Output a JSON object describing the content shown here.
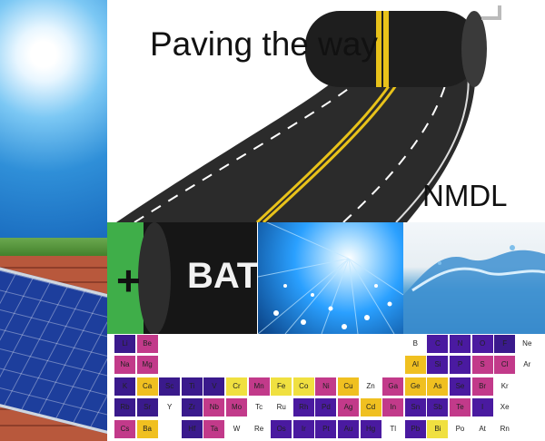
{
  "title": "Paving the way",
  "org": "NMDL",
  "battery_sign": "+",
  "battery_text": "BAT",
  "periodic_table": {
    "rows": [
      {
        "row": 1,
        "cells": [
          {
            "col": 0,
            "sym": "Li",
            "color": "#3a1a8c"
          },
          {
            "col": 1,
            "sym": "Be",
            "color": "#c23a8a"
          },
          {
            "col": 13,
            "sym": "B",
            "color": "#ffffff"
          },
          {
            "col": 14,
            "sym": "C",
            "color": "#4a1aa0"
          },
          {
            "col": 15,
            "sym": "N",
            "color": "#4a1aa0"
          },
          {
            "col": 16,
            "sym": "O",
            "color": "#4a1aa0"
          },
          {
            "col": 17,
            "sym": "F",
            "color": "#3a1a8c"
          },
          {
            "col": 18,
            "sym": "Ne",
            "color": "#ffffff"
          }
        ]
      },
      {
        "row": 2,
        "cells": [
          {
            "col": 0,
            "sym": "Na",
            "color": "#c23a8a"
          },
          {
            "col": 1,
            "sym": "Mg",
            "color": "#c23a8a"
          },
          {
            "col": 13,
            "sym": "Al",
            "color": "#f0c020"
          },
          {
            "col": 14,
            "sym": "Si",
            "color": "#4a1aa0"
          },
          {
            "col": 15,
            "sym": "P",
            "color": "#4a1aa0"
          },
          {
            "col": 16,
            "sym": "S",
            "color": "#c23a8a"
          },
          {
            "col": 17,
            "sym": "Cl",
            "color": "#c23a8a"
          },
          {
            "col": 18,
            "sym": "Ar",
            "color": "#ffffff"
          }
        ]
      },
      {
        "row": 3,
        "cells": [
          {
            "col": 0,
            "sym": "K",
            "color": "#3a1a8c"
          },
          {
            "col": 1,
            "sym": "Ca",
            "color": "#f0c020"
          },
          {
            "col": 2,
            "sym": "Sc",
            "color": "#3a1a8c"
          },
          {
            "col": 3,
            "sym": "Ti",
            "color": "#3a1a8c"
          },
          {
            "col": 4,
            "sym": "V",
            "color": "#3a1a8c"
          },
          {
            "col": 5,
            "sym": "Cr",
            "color": "#f0e040"
          },
          {
            "col": 6,
            "sym": "Mn",
            "color": "#c23a8a"
          },
          {
            "col": 7,
            "sym": "Fe",
            "color": "#f0e040"
          },
          {
            "col": 8,
            "sym": "Co",
            "color": "#f0e040"
          },
          {
            "col": 9,
            "sym": "Ni",
            "color": "#c23a8a"
          },
          {
            "col": 10,
            "sym": "Cu",
            "color": "#f0c020"
          },
          {
            "col": 11,
            "sym": "Zn",
            "color": "#ffffff"
          },
          {
            "col": 12,
            "sym": "Ga",
            "color": "#c23a8a"
          },
          {
            "col": 13,
            "sym": "Ge",
            "color": "#f0c020"
          },
          {
            "col": 14,
            "sym": "As",
            "color": "#f0c020"
          },
          {
            "col": 15,
            "sym": "Se",
            "color": "#4a1aa0"
          },
          {
            "col": 16,
            "sym": "Br",
            "color": "#c23a8a"
          },
          {
            "col": 17,
            "sym": "Kr",
            "color": "#ffffff"
          }
        ]
      },
      {
        "row": 4,
        "cells": [
          {
            "col": 0,
            "sym": "Rb",
            "color": "#3a1a8c"
          },
          {
            "col": 1,
            "sym": "Sr",
            "color": "#3a1a8c"
          },
          {
            "col": 2,
            "sym": "Y",
            "color": "#ffffff"
          },
          {
            "col": 3,
            "sym": "Zr",
            "color": "#3a1a8c"
          },
          {
            "col": 4,
            "sym": "Nb",
            "color": "#c23a8a"
          },
          {
            "col": 5,
            "sym": "Mo",
            "color": "#c23a8a"
          },
          {
            "col": 6,
            "sym": "Tc",
            "color": "#ffffff"
          },
          {
            "col": 7,
            "sym": "Ru",
            "color": "#ffffff"
          },
          {
            "col": 8,
            "sym": "Rh",
            "color": "#4a1aa0"
          },
          {
            "col": 9,
            "sym": "Pd",
            "color": "#4a1aa0"
          },
          {
            "col": 10,
            "sym": "Ag",
            "color": "#c23a8a"
          },
          {
            "col": 11,
            "sym": "Cd",
            "color": "#f0c020"
          },
          {
            "col": 12,
            "sym": "In",
            "color": "#c23a8a"
          },
          {
            "col": 13,
            "sym": "Sn",
            "color": "#4a1aa0"
          },
          {
            "col": 14,
            "sym": "Sb",
            "color": "#4a1aa0"
          },
          {
            "col": 15,
            "sym": "Te",
            "color": "#c23a8a"
          },
          {
            "col": 16,
            "sym": "I",
            "color": "#4a1aa0"
          },
          {
            "col": 17,
            "sym": "Xe",
            "color": "#ffffff"
          }
        ]
      },
      {
        "row": 5,
        "cells": [
          {
            "col": 0,
            "sym": "Cs",
            "color": "#c23a8a"
          },
          {
            "col": 1,
            "sym": "Ba",
            "color": "#f0c020"
          },
          {
            "col": 3,
            "sym": "Hf",
            "color": "#3a1a8c"
          },
          {
            "col": 4,
            "sym": "Ta",
            "color": "#c23a8a"
          },
          {
            "col": 5,
            "sym": "W",
            "color": "#ffffff"
          },
          {
            "col": 6,
            "sym": "Re",
            "color": "#ffffff"
          },
          {
            "col": 7,
            "sym": "Os",
            "color": "#4a1aa0"
          },
          {
            "col": 8,
            "sym": "Ir",
            "color": "#4a1aa0"
          },
          {
            "col": 9,
            "sym": "Pt",
            "color": "#4a1aa0"
          },
          {
            "col": 10,
            "sym": "Au",
            "color": "#4a1aa0"
          },
          {
            "col": 11,
            "sym": "Hg",
            "color": "#4a1aa0"
          },
          {
            "col": 12,
            "sym": "Tl",
            "color": "#ffffff"
          },
          {
            "col": 13,
            "sym": "Pb",
            "color": "#4a1aa0"
          },
          {
            "col": 14,
            "sym": "Bi",
            "color": "#f0e040"
          },
          {
            "col": 15,
            "sym": "Po",
            "color": "#ffffff"
          },
          {
            "col": 16,
            "sym": "At",
            "color": "#ffffff"
          },
          {
            "col": 17,
            "sym": "Rn",
            "color": "#ffffff"
          }
        ]
      }
    ]
  }
}
